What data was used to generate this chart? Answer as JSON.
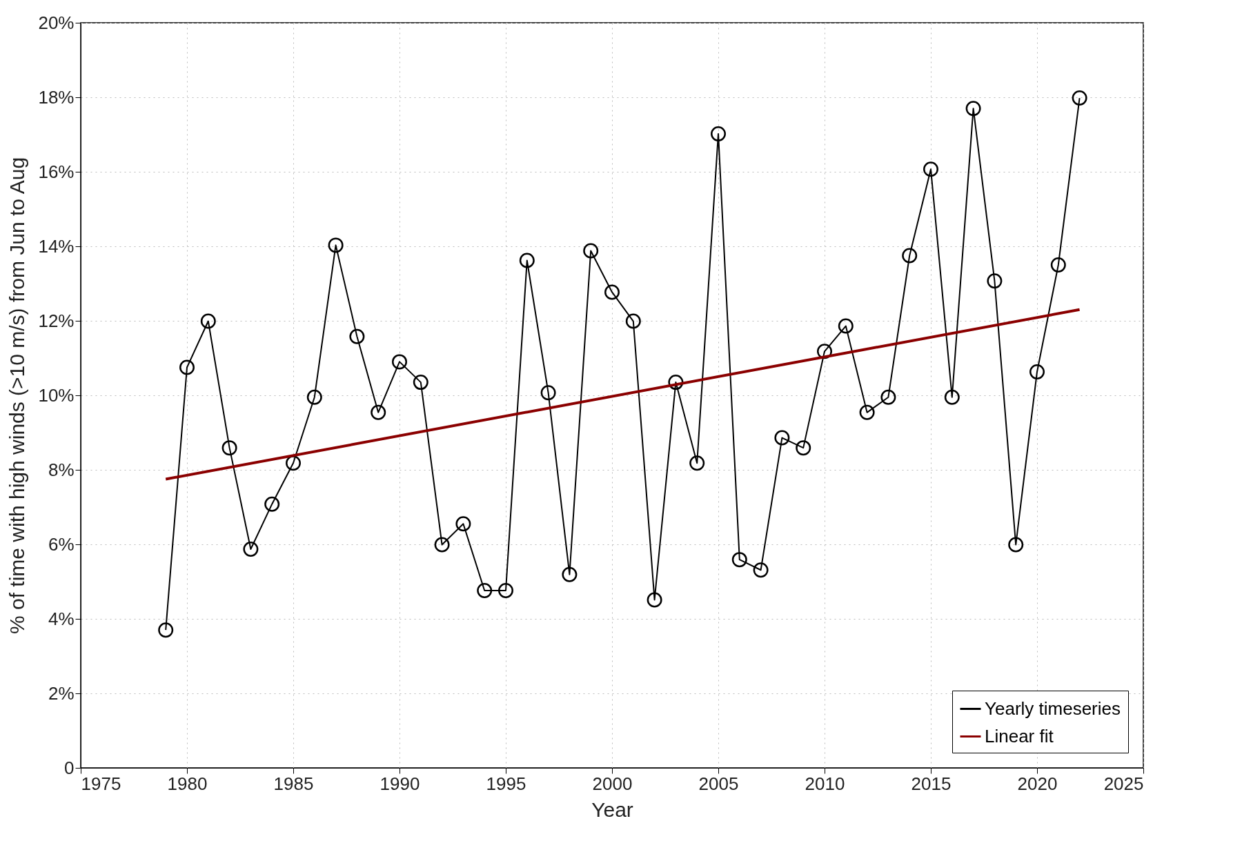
{
  "chart_data": {
    "type": "line",
    "xlabel": "Year",
    "ylabel": "% of time with high winds (>10 m/s) from Jun to Aug",
    "x": [
      1979,
      1980,
      1981,
      1982,
      1983,
      1984,
      1985,
      1986,
      1987,
      1988,
      1989,
      1990,
      1991,
      1992,
      1993,
      1994,
      1995,
      1996,
      1997,
      1998,
      1999,
      2000,
      2001,
      2002,
      2003,
      2004,
      2005,
      2006,
      2007,
      2008,
      2009,
      2010,
      2011,
      2012,
      2013,
      2014,
      2015,
      2016,
      2017,
      2018,
      2019,
      2020,
      2021,
      2022
    ],
    "series": [
      {
        "name": "Yearly timeseries",
        "color": "#000000",
        "values": [
          3.7,
          10.75,
          11.99,
          8.59,
          5.87,
          7.08,
          8.18,
          9.95,
          14.03,
          11.58,
          9.54,
          10.9,
          10.35,
          5.99,
          6.55,
          4.76,
          4.76,
          13.62,
          10.07,
          5.19,
          13.88,
          12.77,
          11.99,
          4.51,
          10.35,
          8.18,
          17.02,
          5.59,
          5.31,
          8.86,
          8.59,
          11.18,
          11.86,
          9.54,
          9.95,
          13.75,
          16.07,
          9.95,
          17.7,
          13.07,
          5.99,
          10.63,
          13.5,
          17.98
        ]
      },
      {
        "name": "Linear fit",
        "type": "line",
        "color": "#8b0000",
        "marker": "none",
        "x": [
          1979,
          2022
        ],
        "values": [
          7.75,
          12.3
        ]
      }
    ],
    "xlim": [
      1975,
      2025
    ],
    "xticks": [
      1975,
      1980,
      1985,
      1990,
      1995,
      2000,
      2005,
      2010,
      2015,
      2020,
      2025
    ],
    "ylim": [
      0,
      20
    ],
    "yticks": [
      0,
      {
        "value": 2,
        "label": "2%"
      },
      {
        "value": 4,
        "label": "4%"
      },
      {
        "value": 6,
        "label": "6%"
      },
      {
        "value": 8,
        "label": "8%"
      },
      {
        "value": 10,
        "label": "10%"
      },
      {
        "value": 12,
        "label": "12%"
      },
      {
        "value": 14,
        "label": "14%"
      },
      {
        "value": 16,
        "label": "16%"
      },
      {
        "value": 18,
        "label": "18%"
      },
      {
        "value": 20,
        "label": "20%"
      }
    ],
    "grid": true,
    "legend": "bottom right",
    "marker": "circle",
    "line_style": "solid"
  }
}
